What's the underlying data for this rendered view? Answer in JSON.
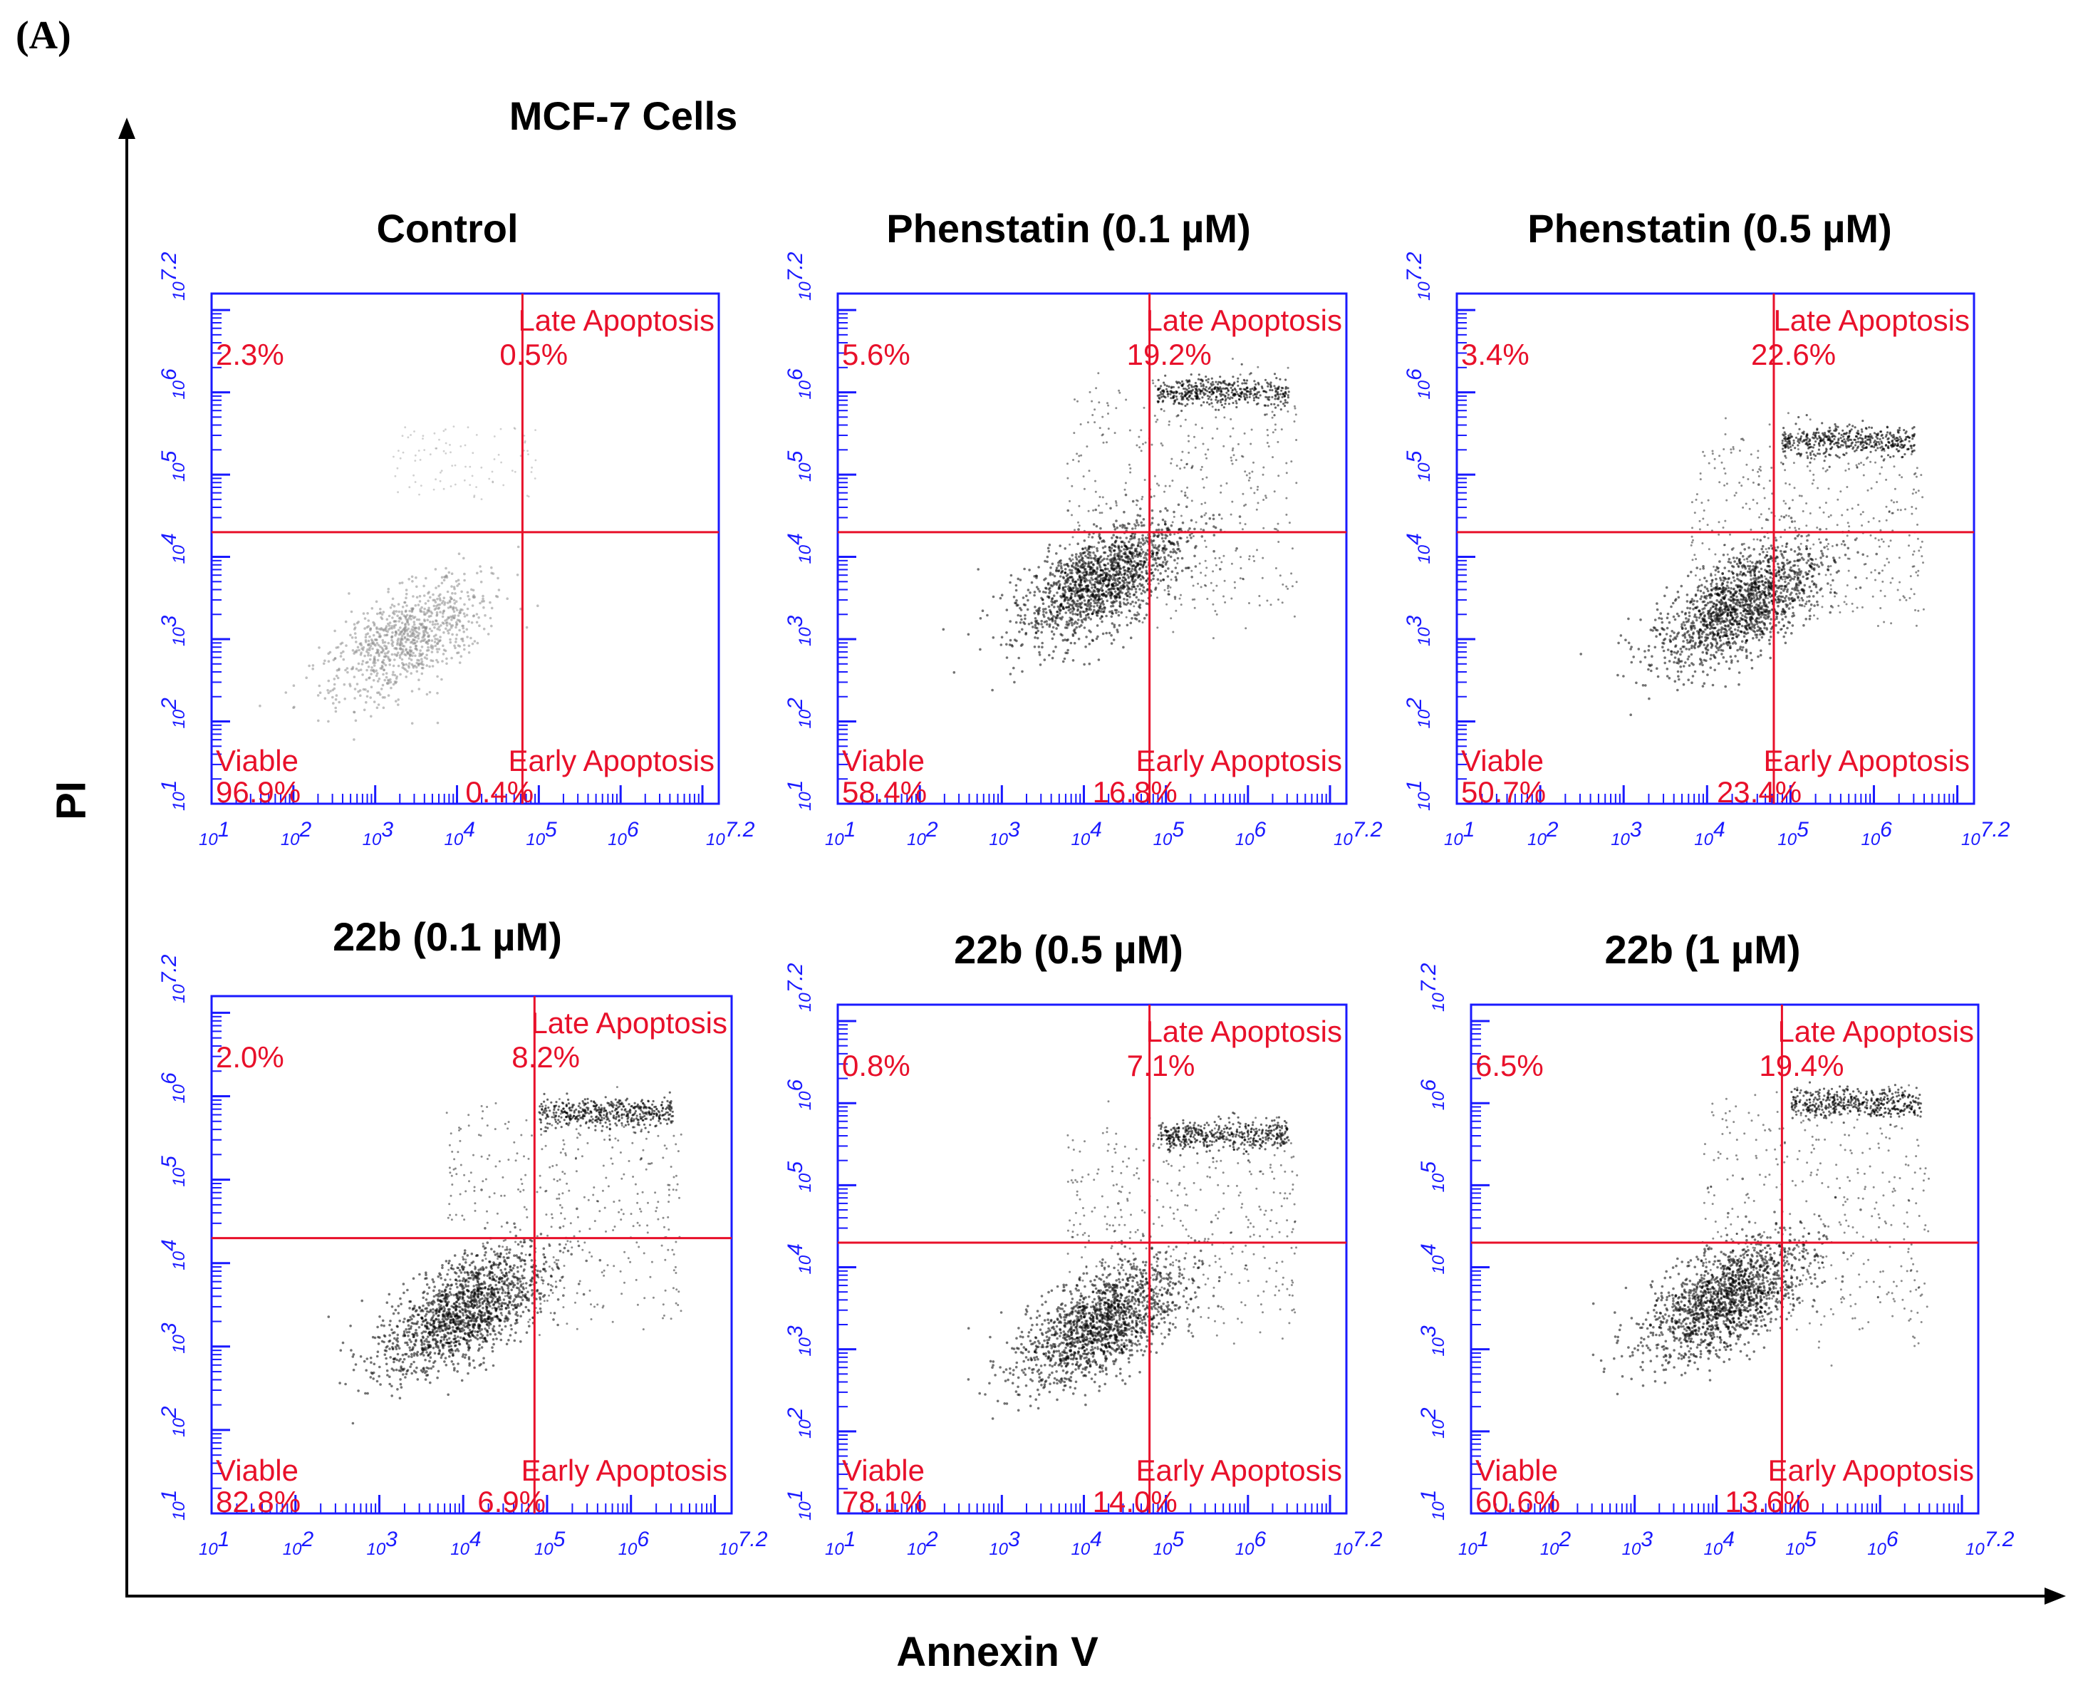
{
  "figure": {
    "panel_letter": "(A)",
    "title": "MCF-7 Cells",
    "xlabel": "Annexin V",
    "ylabel": "PI"
  },
  "colors": {
    "axis": "#1a1aff",
    "gate": "#e8102a",
    "dots": "#000000",
    "control_dots": "#8a8a8a",
    "frame": "#000000"
  },
  "chart_data": [
    {
      "type": "scatter",
      "title": "Control",
      "scale": "log10",
      "xlim_exp": [
        1,
        7.2
      ],
      "ylim_exp": [
        1,
        7.2
      ],
      "tick_labels": [
        "10^1",
        "10^2",
        "10^3",
        "10^4",
        "10^5",
        "10^6",
        "10^7.2"
      ],
      "quadrant_gate": {
        "x_exp": 4.8,
        "y_exp": 4.3
      },
      "quadrants": {
        "upper_left": {
          "label": "",
          "value": "2.3%"
        },
        "upper_right": {
          "label": "Late Apoptosis",
          "value": "0.5%"
        },
        "lower_left": {
          "label": "Viable",
          "value": "96.9%"
        },
        "lower_right": {
          "label": "Early Apoptosis",
          "value": "0.4%"
        }
      },
      "population_shown": {
        "main_center_exp": [
          3.4,
          3.0
        ],
        "dot_tone": "light"
      }
    },
    {
      "type": "scatter",
      "title": "Phenstatin (0.1 µM)",
      "scale": "log10",
      "xlim_exp": [
        1,
        7.2
      ],
      "ylim_exp": [
        1,
        7.2
      ],
      "tick_labels": [
        "10^1",
        "10^2",
        "10^3",
        "10^4",
        "10^5",
        "10^6",
        "10^7.2"
      ],
      "quadrant_gate": {
        "x_exp": 4.8,
        "y_exp": 4.3
      },
      "quadrants": {
        "upper_left": {
          "label": "",
          "value": "5.6%"
        },
        "upper_right": {
          "label": "Late Apoptosis",
          "value": "19.2%"
        },
        "lower_left": {
          "label": "Viable",
          "value": "58.4%"
        },
        "lower_right": {
          "label": "Early Apoptosis",
          "value": "16.8%"
        }
      },
      "population_shown": {
        "main_center_exp": [
          4.2,
          3.7
        ],
        "late_band_y_exp": 6.0
      }
    },
    {
      "type": "scatter",
      "title": "Phenstatin (0.5 µM)",
      "scale": "log10",
      "xlim_exp": [
        1,
        7.2
      ],
      "ylim_exp": [
        1,
        7.2
      ],
      "tick_labels": [
        "10^1",
        "10^2",
        "10^3",
        "10^4",
        "10^5",
        "10^6",
        "10^7.2"
      ],
      "quadrant_gate": {
        "x_exp": 4.8,
        "y_exp": 4.3
      },
      "quadrants": {
        "upper_left": {
          "label": "",
          "value": "3.4%"
        },
        "upper_right": {
          "label": "Late Apoptosis",
          "value": "22.6%"
        },
        "lower_left": {
          "label": "Viable",
          "value": "50.7%"
        },
        "lower_right": {
          "label": "Early Apoptosis",
          "value": "23.4%"
        }
      },
      "population_shown": {
        "main_center_exp": [
          4.4,
          3.4
        ],
        "late_band_y_exp": 5.4
      }
    },
    {
      "type": "scatter",
      "title": "22b (0.1 µM)",
      "scale": "log10",
      "xlim_exp": [
        1,
        7.2
      ],
      "ylim_exp": [
        1,
        7.2
      ],
      "tick_labels": [
        "10^1",
        "10^2",
        "10^3",
        "10^4",
        "10^5",
        "10^6",
        "10^7.2"
      ],
      "quadrant_gate": {
        "x_exp": 4.85,
        "y_exp": 4.3
      },
      "quadrants": {
        "upper_left": {
          "label": "",
          "value": "2.0%"
        },
        "upper_right": {
          "label": "Late Apoptosis",
          "value": "8.2%"
        },
        "lower_left": {
          "label": "Viable",
          "value": "82.8%"
        },
        "lower_right": {
          "label": "Early Apoptosis",
          "value": "6.9%"
        }
      },
      "population_shown": {
        "main_center_exp": [
          4.0,
          3.4
        ],
        "late_band_y_exp": 5.8
      }
    },
    {
      "type": "scatter",
      "title": "22b (0.5 µM)",
      "scale": "log10",
      "xlim_exp": [
        1,
        7.2
      ],
      "ylim_exp": [
        1,
        7.2
      ],
      "tick_labels": [
        "10^1",
        "10^2",
        "10^3",
        "10^4",
        "10^5",
        "10^6",
        "10^7.2"
      ],
      "quadrant_gate": {
        "x_exp": 4.8,
        "y_exp": 4.3
      },
      "quadrants": {
        "upper_left": {
          "label": "",
          "value": "0.8%"
        },
        "upper_right": {
          "label": "Late Apoptosis",
          "value": "7.1%"
        },
        "lower_left": {
          "label": "Viable",
          "value": "78.1%"
        },
        "lower_right": {
          "label": "Early Apoptosis",
          "value": "14.0%"
        }
      },
      "population_shown": {
        "main_center_exp": [
          4.2,
          3.3
        ],
        "late_band_y_exp": 5.6
      }
    },
    {
      "type": "scatter",
      "title": "22b (1 µM)",
      "scale": "log10",
      "xlim_exp": [
        1,
        7.2
      ],
      "ylim_exp": [
        1,
        7.2
      ],
      "tick_labels": [
        "10^1",
        "10^2",
        "10^3",
        "10^4",
        "10^5",
        "10^6",
        "10^7.2"
      ],
      "quadrant_gate": {
        "x_exp": 4.8,
        "y_exp": 4.3
      },
      "quadrants": {
        "upper_left": {
          "label": "",
          "value": "6.5%"
        },
        "upper_right": {
          "label": "Late Apoptosis",
          "value": "19.4%"
        },
        "lower_left": {
          "label": "Viable",
          "value": "60.6%"
        },
        "lower_right": {
          "label": "Early Apoptosis",
          "value": "13.6%"
        }
      },
      "population_shown": {
        "main_center_exp": [
          4.1,
          3.6
        ],
        "late_band_y_exp": 6.0
      }
    }
  ]
}
